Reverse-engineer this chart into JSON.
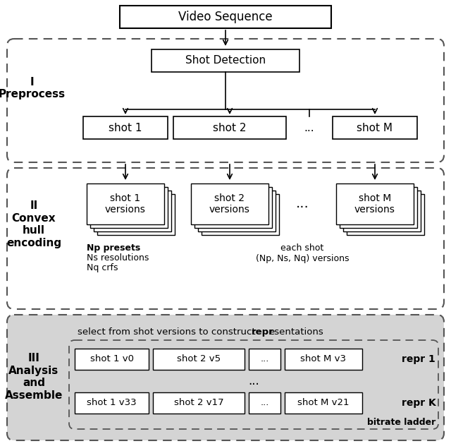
{
  "bg_color": "#ffffff",
  "sec3_bg": "#d8d8d8",
  "dashed_ec": "#555555",
  "box_ec": "#000000",
  "title": "Video Sequence",
  "shot_detection": "Shot Detection",
  "sec1_label": "I\nPreprocess",
  "sec2_label": "II\nConvex\nhull\nencoding",
  "sec3_label": "III\nAnalysis\nand\nAssemble",
  "shot_boxes": [
    "shot 1",
    "shot 2",
    "...",
    "shot M"
  ],
  "version_labels": [
    "shot 1\nversions",
    "shot 2\nversions",
    "shot M\nversions"
  ],
  "np_bold": "Np presets",
  "np_rest": "Ns resolutions\nNq crfs",
  "each_shot": "each shot\n(Np, Ns, Nq) versions",
  "select_normal": "select from shot versions to construct ",
  "select_bold": "repr",
  "select_rest": "esentations",
  "repr1_boxes": [
    "shot 1 v0",
    "shot 2 v5",
    "...",
    "shot M v3"
  ],
  "reprK_boxes": [
    "shot 1 v33",
    "shot 2 v17",
    "...",
    "shot M v21"
  ],
  "repr1_label": "repr 1",
  "reprK_label": "repr K",
  "bitrate_ladder": "bitrate ladder"
}
